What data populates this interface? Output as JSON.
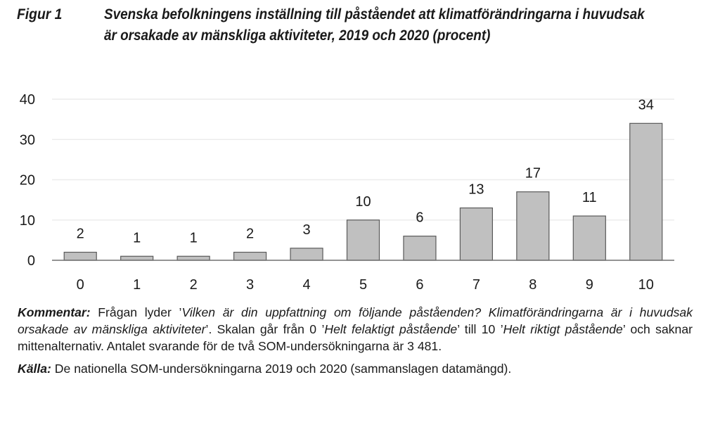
{
  "figure": {
    "label": "Figur 1",
    "title": "Svenska befolkningens inställning till påståendet att klimatförändringarna i huvudsak är orsakade av mänskliga aktiviteter, 2019 och 2020 (procent)"
  },
  "chart_data": {
    "type": "bar",
    "title": "Svenska befolkningens inställning till påståendet att klimatförändringarna i huvudsak är orsakade av mänskliga aktiviteter, 2019 och 2020 (procent)",
    "xlabel": "",
    "ylabel": "",
    "categories": [
      "0",
      "1",
      "2",
      "3",
      "4",
      "5",
      "6",
      "7",
      "8",
      "9",
      "10"
    ],
    "values": [
      2,
      1,
      1,
      2,
      3,
      10,
      6,
      13,
      17,
      11,
      34
    ],
    "data_labels": [
      "2",
      "1",
      "1",
      "2",
      "3",
      "10",
      "6",
      "13",
      "17",
      "11",
      "34"
    ],
    "ylim": [
      0,
      40
    ],
    "yticks": [
      0,
      10,
      20,
      30,
      40
    ],
    "ytick_labels": [
      "0",
      "10",
      "20",
      "30",
      "40"
    ],
    "grid": true,
    "legend": "none",
    "colors": {
      "bar_fill": "#c0c0c0",
      "bar_stroke": "#5a5a5a",
      "grid": "#ececec",
      "axis": "#707070"
    }
  },
  "notes": {
    "comment_label": "Kommentar:",
    "comment_parts": [
      {
        "style": "normal",
        "text": " Frågan lyder ’"
      },
      {
        "style": "italic",
        "text": "Vilken är din uppfattning om följande påståenden? Klimatförändringarna är i huvudsak orsakade av mänskliga aktiviteter"
      },
      {
        "style": "normal",
        "text": "’. Skalan går från 0 ’"
      },
      {
        "style": "italic",
        "text": "Helt felaktigt påstående"
      },
      {
        "style": "normal",
        "text": "’ till 10 ’"
      },
      {
        "style": "italic",
        "text": "Helt riktigt påstående"
      },
      {
        "style": "normal",
        "text": "’ och saknar mittenalternativ. Antalet svarande för de två SOM-undersökningarna är 3 481."
      }
    ],
    "source_label": "Källa:",
    "source_text": " De nationella SOM-undersökningarna 2019 och 2020 (sammanslagen datamängd)."
  }
}
